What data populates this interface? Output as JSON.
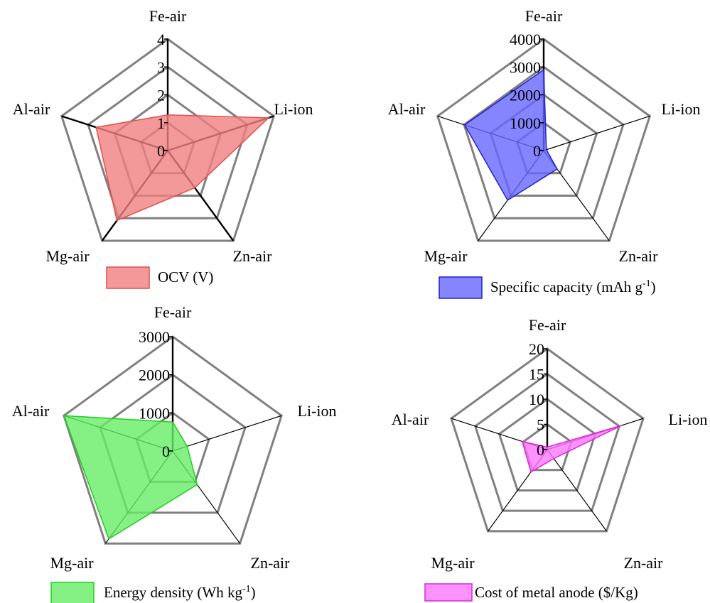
{
  "chart_data": [
    {
      "type": "radar",
      "categories": [
        "Fe-air",
        "Li-ion",
        "Zn-air",
        "Mg-air",
        "Al-air"
      ],
      "rlim": [
        0,
        4
      ],
      "ticks": [
        "0",
        "1",
        "2",
        "3",
        "4"
      ],
      "series": [
        {
          "name": "OCV (V)",
          "values": [
            1.28,
            3.8,
            1.65,
            3.1,
            2.7
          ],
          "color": "#f08080",
          "stroke": "#e05050"
        }
      ],
      "legend": {
        "placement": "bottom",
        "text": "OCV (V)",
        "sup": "",
        "after": ""
      }
    },
    {
      "type": "radar",
      "categories": [
        "Fe-air",
        "Li-ion",
        "Zn-air",
        "Mg-air",
        "Al-air"
      ],
      "rlim": [
        0,
        4000
      ],
      "ticks": [
        "0",
        "1000",
        "2000",
        "3000",
        "4000"
      ],
      "series": [
        {
          "name": "Specific capacity (mAh g-1)",
          "values": [
            2900,
            100,
            820,
            2200,
            2980
          ],
          "color": "#6666ff",
          "stroke": "#2020d0"
        }
      ],
      "legend": {
        "placement": "bottom",
        "text": "Specific capacity (mAh g",
        "sup": "-1",
        "after": ")"
      }
    },
    {
      "type": "radar",
      "categories": [
        "Fe-air",
        "Li-ion",
        "Zn-air",
        "Mg-air",
        "Al-air"
      ],
      "rlim": [
        0,
        3000
      ],
      "ticks": [
        "0",
        "1000",
        "2000",
        "3000"
      ],
      "series": [
        {
          "name": "Energy density (Wh kg-1)",
          "values": [
            760,
            400,
            1090,
            2850,
            3000
          ],
          "color": "#66ee66",
          "stroke": "#22cc22"
        }
      ],
      "legend": {
        "placement": "bottom",
        "text": "Energy density (Wh kg",
        "sup": "-1",
        "after": ")"
      }
    },
    {
      "type": "radar",
      "categories": [
        "Fe-air",
        "Li-ion",
        "Zn-air",
        "Mg-air",
        "Al-air"
      ],
      "rlim": [
        0,
        20
      ],
      "ticks": [
        "0",
        "5",
        "10",
        "15",
        "20"
      ],
      "series": [
        {
          "name": "Cost of metal anode ($/Kg)",
          "values": [
            0.5,
            15.5,
            2.2,
            5.5,
            5.2
          ],
          "color": "#ff77ff",
          "stroke": "#dd22dd"
        }
      ],
      "legend": {
        "placement": "bottom",
        "text": "Cost of metal anode ($/Kg)",
        "sup": "",
        "after": ""
      }
    }
  ]
}
